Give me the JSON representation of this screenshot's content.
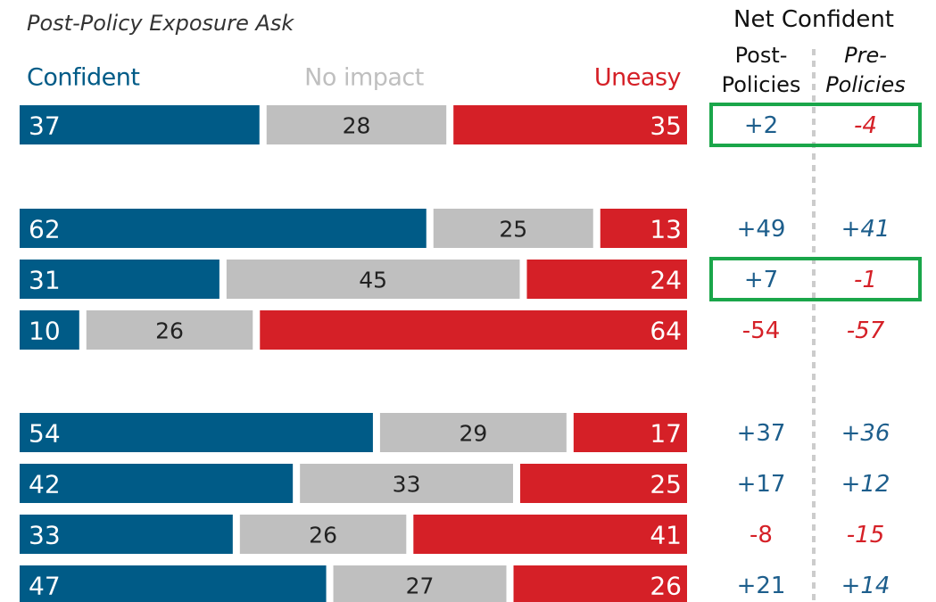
{
  "chart_data": {
    "type": "diverging_stacked_bar",
    "subtitle": "Post-Policy Exposure Ask",
    "net_title": "Net Confident",
    "categories": [
      null,
      null,
      null,
      null,
      null,
      null,
      null,
      null
    ],
    "series": [
      {
        "name": "Confident",
        "color": "#005b87",
        "values": [
          37,
          62,
          31,
          10,
          54,
          42,
          33,
          47
        ]
      },
      {
        "name": "No impact",
        "color": "#bfbfbf",
        "values": [
          28,
          25,
          45,
          26,
          29,
          33,
          26,
          27
        ]
      },
      {
        "name": "Uneasy",
        "color": "#d52027",
        "values": [
          35,
          13,
          24,
          64,
          17,
          25,
          41,
          26
        ]
      }
    ],
    "xlim": [
      0,
      100
    ],
    "net_columns": [
      {
        "name": [
          "Post-",
          "Policies"
        ],
        "italic": false,
        "values": [
          2,
          49,
          7,
          -54,
          37,
          17,
          -8,
          21
        ],
        "value_labels": [
          "+2",
          "+49",
          "+7",
          "-54",
          "+37",
          "+17",
          "-8",
          "+21"
        ]
      },
      {
        "name": [
          "Pre-",
          "Policies"
        ],
        "italic": true,
        "values": [
          -4,
          41,
          -1,
          -57,
          36,
          12,
          -15,
          14
        ],
        "value_labels": [
          "-4",
          "+41",
          "-1",
          "-57",
          "+36",
          "+12",
          "-15",
          "+14"
        ]
      }
    ],
    "positive_color": "#1d5e8c",
    "negative_color": "#d52027",
    "highlight_color": "#1aa64a",
    "highlight_rows": [
      0,
      2
    ]
  }
}
